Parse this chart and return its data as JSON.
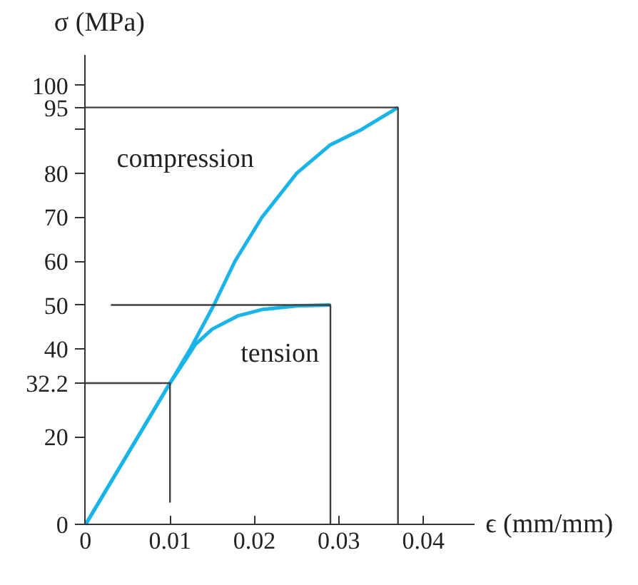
{
  "chart_data": {
    "type": "line",
    "xlabel": "ϵ (mm/mm)",
    "ylabel": "σ (MPa)",
    "xlim": [
      0,
      0.046
    ],
    "ylim": [
      0,
      107
    ],
    "xticks": [
      0,
      0.01,
      0.02,
      0.03,
      0.04
    ],
    "yticks": [
      0,
      20,
      32.2,
      40,
      50,
      60,
      70,
      80,
      {
        "value": 90,
        "label": null
      },
      95,
      100
    ],
    "grid": false,
    "marker": "none",
    "line_style": "solid",
    "series": [
      {
        "name": "compression",
        "color": "#1ab4e8",
        "x": [
          0,
          0.01,
          0.0125,
          0.0152,
          0.0177,
          0.0209,
          0.025,
          0.029,
          0.0327,
          0.037
        ],
        "values": [
          0,
          32.2,
          40.3,
          50,
          60,
          70,
          80,
          86.5,
          90,
          95
        ]
      },
      {
        "name": "tension",
        "color": "#1ab4e8",
        "x": [
          0,
          0.01,
          0.012,
          0.013,
          0.015,
          0.018,
          0.021,
          0.025,
          0.029
        ],
        "values": [
          0,
          32.2,
          38,
          41,
          44.5,
          47.5,
          49,
          49.8,
          50
        ]
      },
      {
        "color": "#404040",
        "x": [
          0,
          0.037,
          0.037
        ],
        "values": [
          95,
          95,
          0
        ]
      },
      {
        "color": "#404040",
        "x": [
          0.003,
          0.029,
          0.029
        ],
        "values": [
          50,
          50,
          0
        ]
      },
      {
        "color": "#404040",
        "x": [
          0,
          0.01,
          0.01
        ],
        "values": [
          32.2,
          32.2,
          5
        ]
      }
    ]
  }
}
